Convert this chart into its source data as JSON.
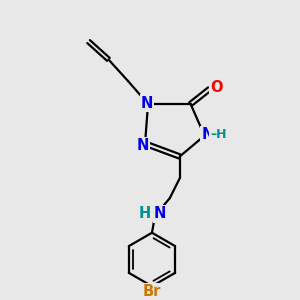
{
  "bg_color": "#e8e8e8",
  "atom_colors": {
    "N": "#0000ee",
    "O": "#ff0000",
    "Br": "#cc7700",
    "C": "#000000",
    "H_teal": "#009090"
  },
  "lw": 1.6,
  "fs": 10.5
}
